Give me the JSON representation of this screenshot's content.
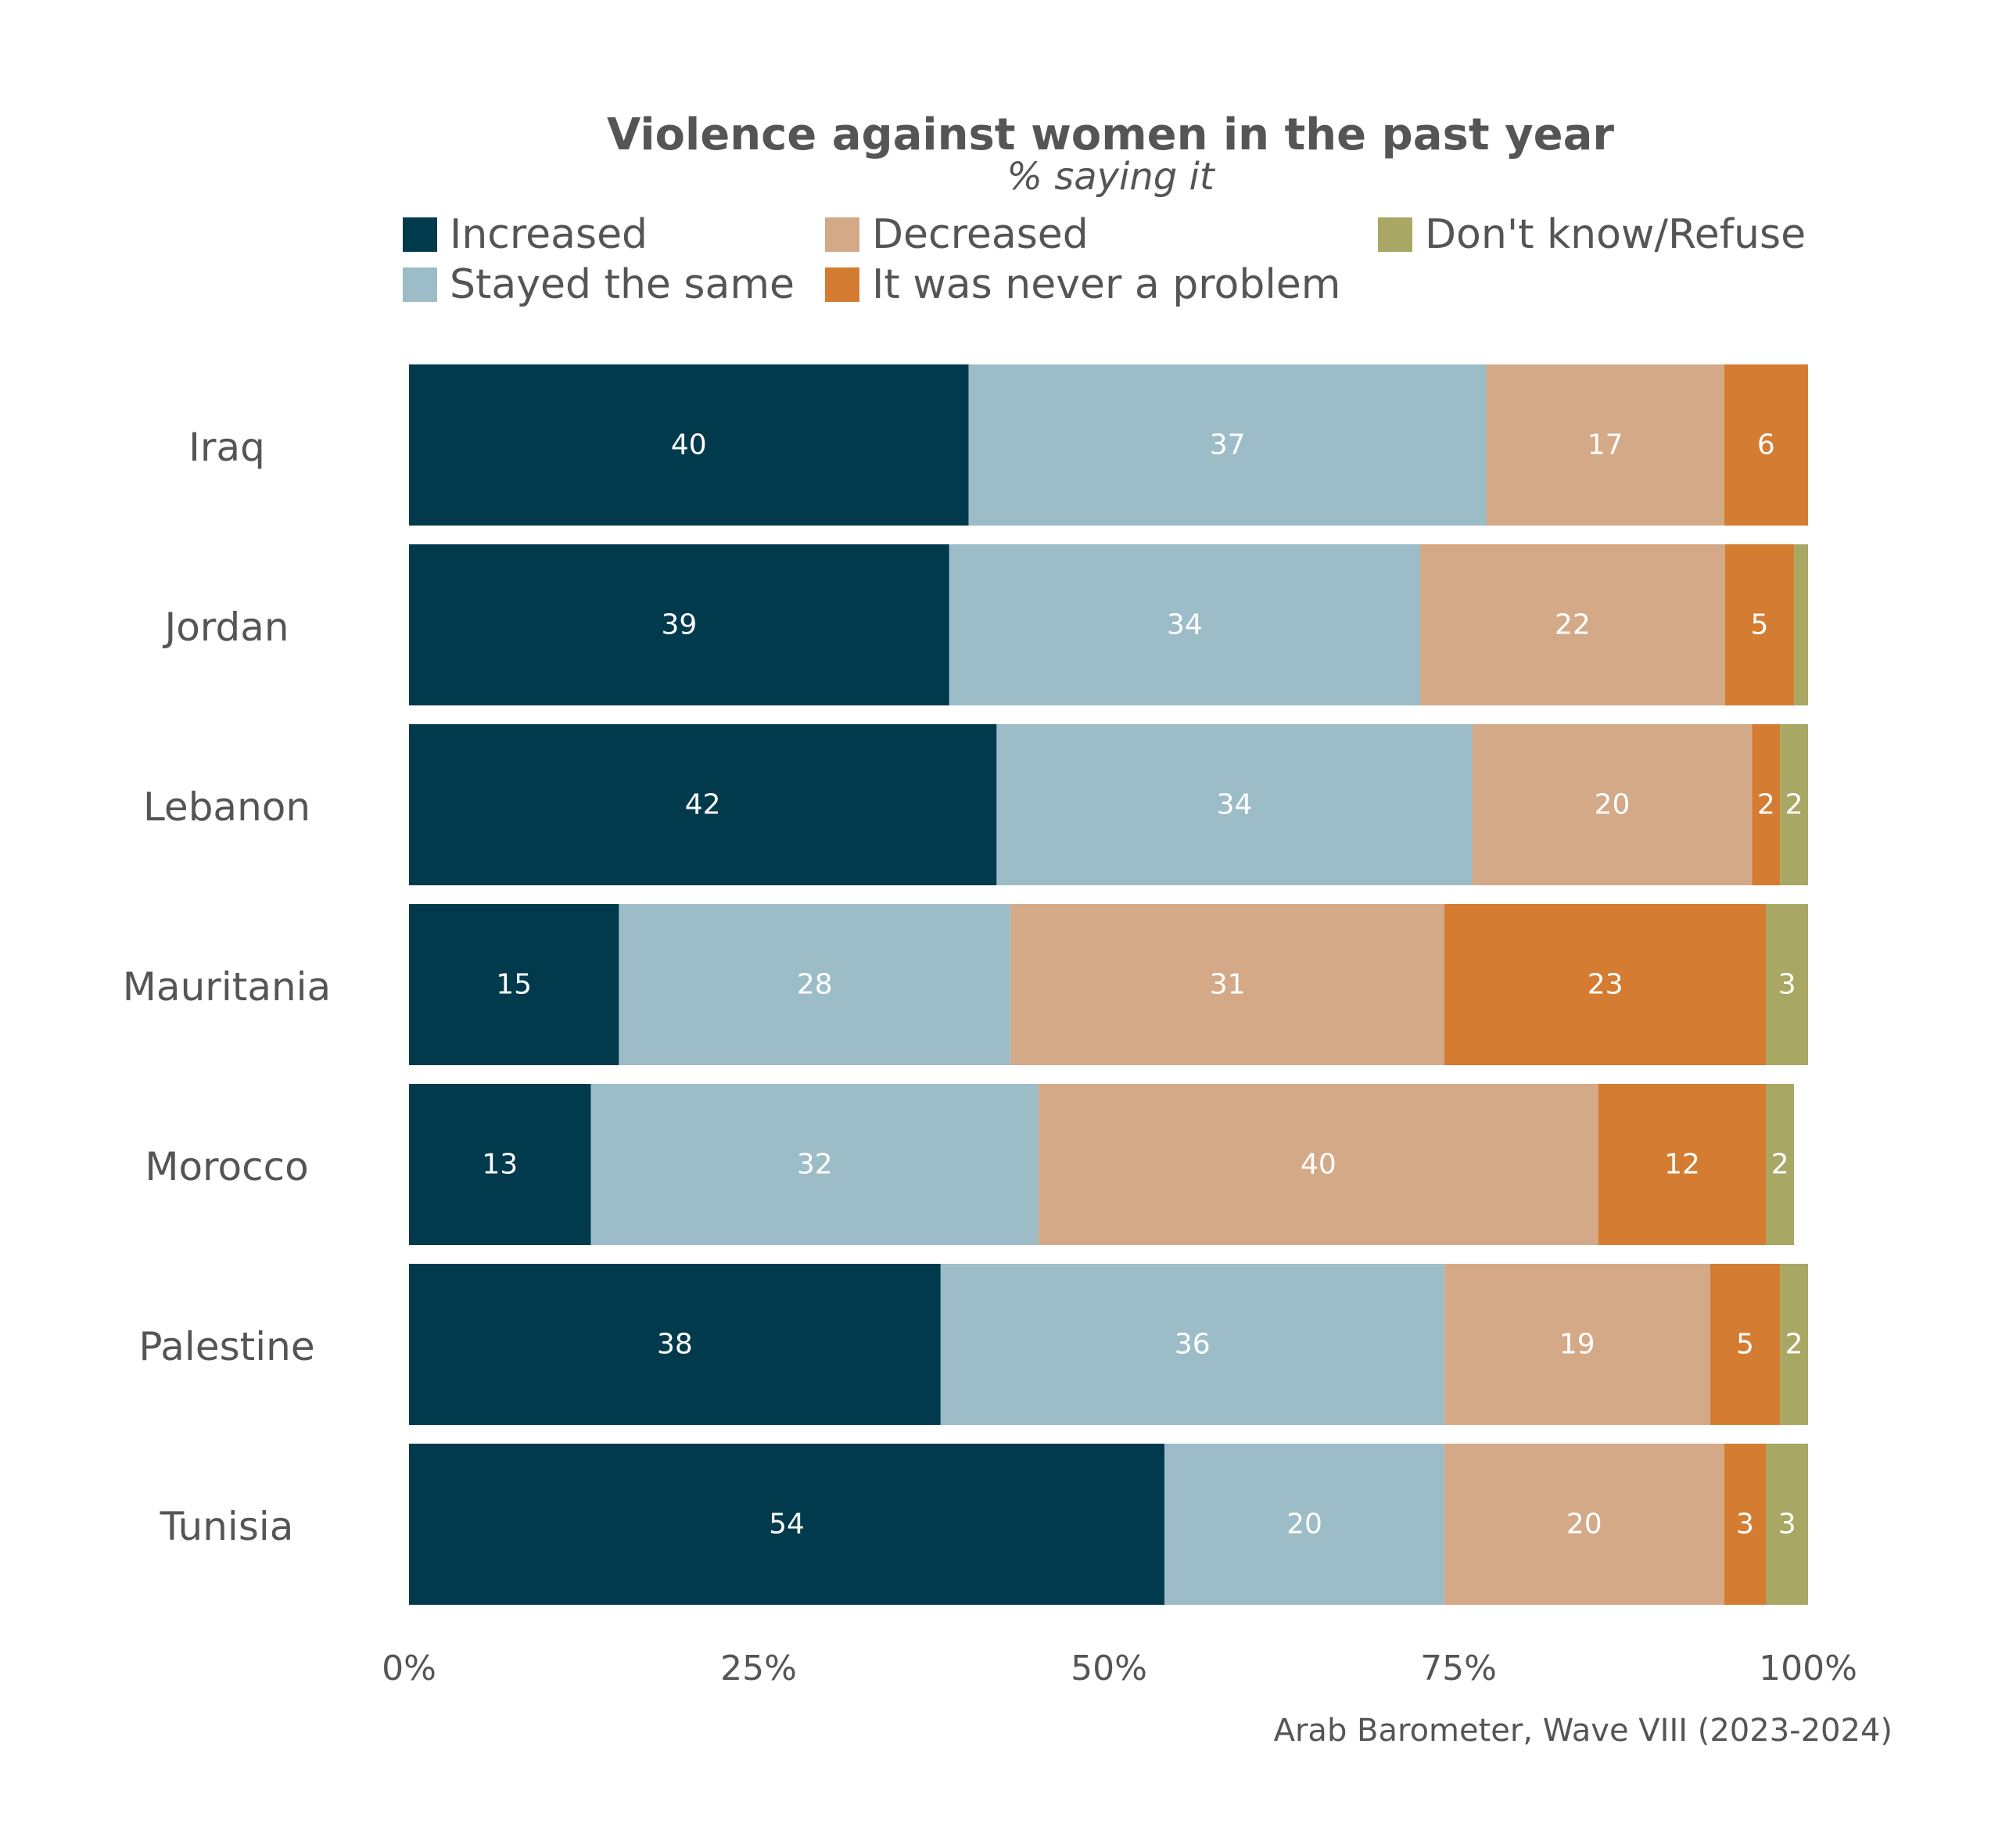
{
  "chart_data": {
    "type": "bar",
    "orientation": "horizontal",
    "stacked": true,
    "title": "Violence against women in the past year",
    "subtitle": "% saying it",
    "categories": [
      "Iraq",
      "Jordan",
      "Lebanon",
      "Mauritania",
      "Morocco",
      "Palestine",
      "Tunisia"
    ],
    "series": [
      {
        "name": "Increased",
        "color": "#023a4d",
        "values": [
          40,
          39,
          42,
          15,
          13,
          38,
          54
        ]
      },
      {
        "name": "Stayed the same",
        "color": "#9cbdc7",
        "values": [
          37,
          34,
          34,
          28,
          32,
          36,
          20
        ]
      },
      {
        "name": "Decreased",
        "color": "#d4a987",
        "values": [
          17,
          22,
          20,
          31,
          40,
          19,
          20
        ]
      },
      {
        "name": "It was never a problem",
        "color": "#d47c31",
        "values": [
          6,
          5,
          2,
          23,
          12,
          5,
          3
        ]
      },
      {
        "name": "Don't know/Refuse",
        "color": "#a8a764",
        "values": [
          0,
          1,
          2,
          3,
          2,
          2,
          3
        ]
      }
    ],
    "data_labels": [
      [
        "40",
        "37",
        "17",
        "6",
        ""
      ],
      [
        "39",
        "34",
        "22",
        "5",
        ""
      ],
      [
        "42",
        "34",
        "20",
        "2",
        "2"
      ],
      [
        "15",
        "28",
        "31",
        "23",
        "3"
      ],
      [
        "13",
        "32",
        "40",
        "12",
        "2"
      ],
      [
        "38",
        "36",
        "19",
        "5",
        "2"
      ],
      [
        "54",
        "20",
        "20",
        "3",
        "3"
      ]
    ],
    "xlim": [
      0,
      100
    ],
    "x_ticks": [
      "0%",
      "25%",
      "50%",
      "75%",
      "100%"
    ],
    "legend_position": "top",
    "grid": false,
    "caption": "Arab Barometer, Wave VIII (2023-2024)"
  }
}
